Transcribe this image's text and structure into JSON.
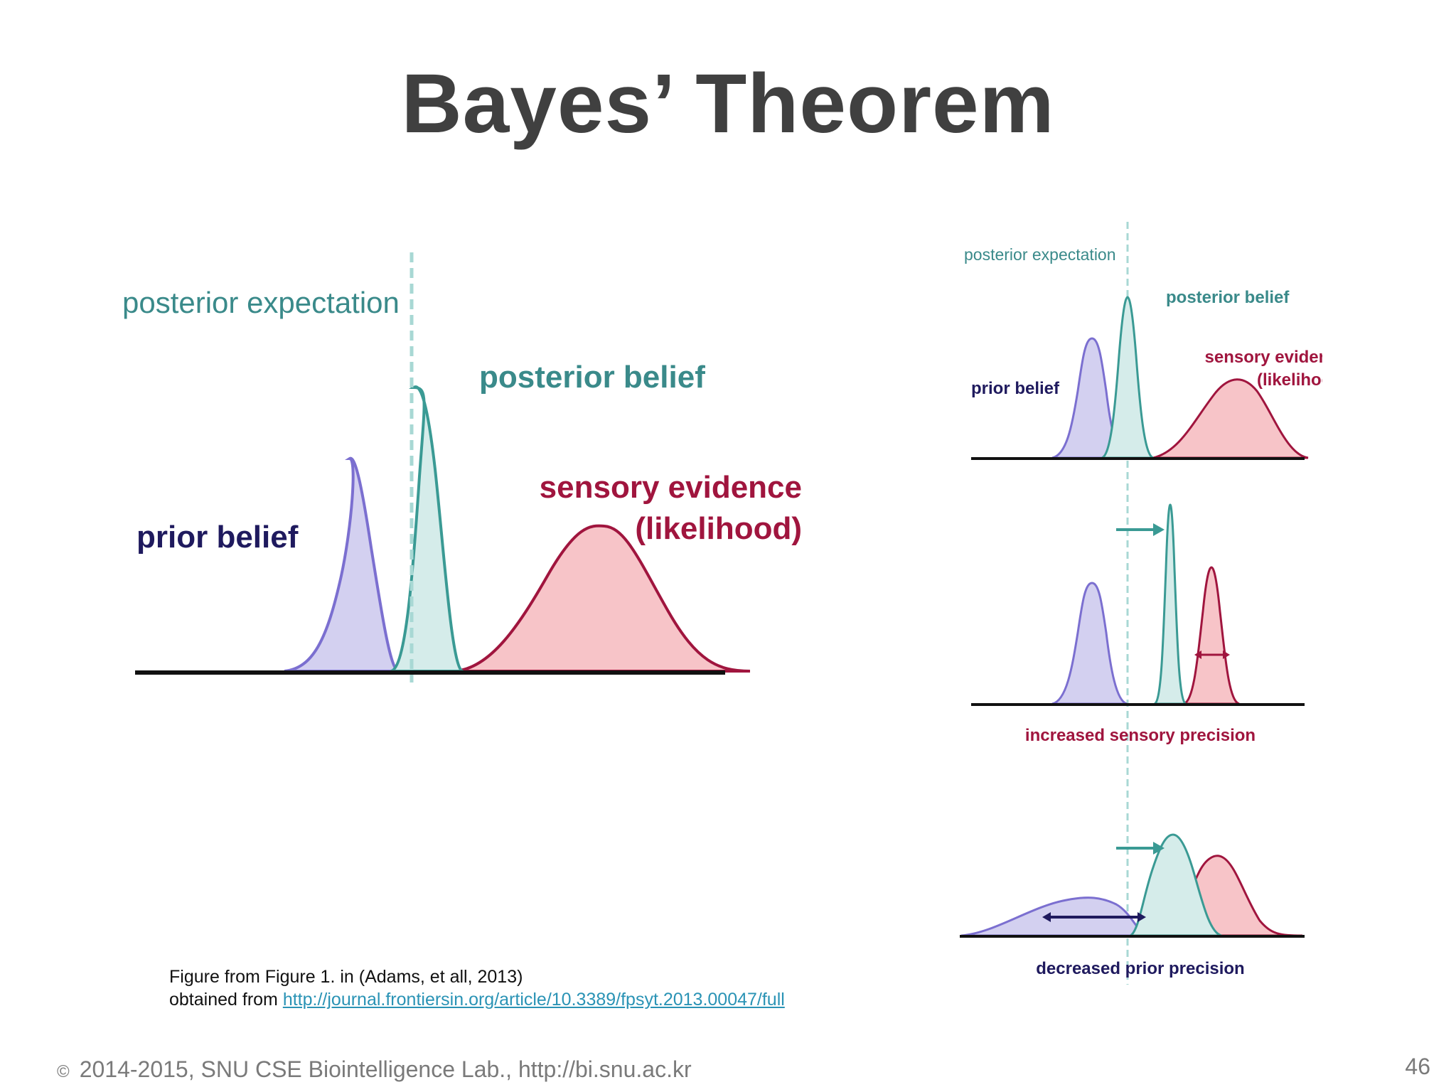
{
  "slide": {
    "title": "Bayes’ Theorem",
    "page_number": "46"
  },
  "main_figure": {
    "posterior_expectation": "posterior expectation",
    "posterior_belief": "posterior belief",
    "sensory_evidence": "sensory evidence",
    "likelihood": "(likelihood)",
    "prior_belief": "prior belief"
  },
  "side_figure": {
    "posterior_expectation": "posterior expectation",
    "posterior_belief": "posterior belief",
    "sensory_evidence": "sensory evidence",
    "likelihood": "(likelihood)",
    "prior_belief": "prior belief",
    "panel2_caption": "increased sensory precision",
    "panel3_caption": "decreased prior precision"
  },
  "caption": {
    "line1": "Figure from Figure 1. in (Adams, et all, 2013)",
    "line2_prefix": "obtained from ",
    "link": "http://journal.frontiersin.org/article/10.3389/fpsyt.2013.00047/full"
  },
  "footer": {
    "copyright_symbol": "©",
    "text": "2014-2015, SNU CSE Biointelligence Lab., http://bi.snu.ac.kr"
  },
  "colors": {
    "title": "#404040",
    "prior_stroke": "#7b6fd0",
    "prior_fill": "#d3d0f0",
    "posterior_stroke": "#3a9a94",
    "posterior_fill": "#d5ecea",
    "likelihood_stroke": "#a0153e",
    "likelihood_fill": "#f7c4c8",
    "prior_label": "#1f1a5e",
    "posterior_label": "#3a8a8a",
    "likelihood_label": "#a0153e",
    "guide_line": "#a8d8d4"
  }
}
